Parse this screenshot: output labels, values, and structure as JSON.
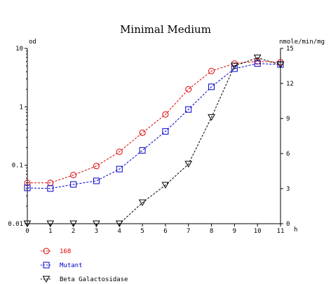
{
  "chart_data": {
    "type": "line",
    "title": "Minimal Medium",
    "x": [
      0,
      1,
      2,
      3,
      4,
      5,
      6,
      7,
      8,
      9,
      10,
      11
    ],
    "xlabel": "h",
    "xlim": [
      0,
      11
    ],
    "left_axis": {
      "label": "od",
      "scale": "log",
      "ylim": [
        0.01,
        10
      ],
      "ticks": [
        "0.01",
        "0.1",
        "1",
        "10"
      ],
      "tick_values": [
        0.01,
        0.1,
        1,
        10
      ]
    },
    "right_axis": {
      "label": "nmole/min/mg",
      "scale": "linear",
      "ylim": [
        0,
        15
      ],
      "ticks": [
        "0",
        "3",
        "6",
        "9",
        "12",
        "15"
      ],
      "tick_values": [
        0,
        3,
        6,
        9,
        12,
        15
      ]
    },
    "x_ticks": [
      "0",
      "1",
      "2",
      "3",
      "4",
      "5",
      "6",
      "7",
      "8",
      "9",
      "10",
      "11"
    ],
    "grid": false,
    "legend_position": "bottom-left",
    "series": [
      {
        "name": "168",
        "axis": "left",
        "marker": "circle",
        "color": "#dd0000",
        "values": [
          0.05,
          0.05,
          0.068,
          0.097,
          0.17,
          0.36,
          0.74,
          2.0,
          4.1,
          5.5,
          6.0,
          5.8
        ]
      },
      {
        "name": "Mutant",
        "axis": "left",
        "marker": "square",
        "color": "#0000cc",
        "values": [
          0.041,
          0.04,
          0.047,
          0.054,
          0.086,
          0.18,
          0.38,
          0.9,
          2.2,
          4.5,
          5.5,
          5.3
        ]
      },
      {
        "name": "Beta Galactosidase",
        "axis": "right",
        "marker": "triangle-down",
        "color": "#000000",
        "values": [
          0,
          0,
          0,
          0,
          0,
          1.8,
          3.3,
          5.1,
          9.1,
          13.5,
          14.2,
          13.6
        ]
      }
    ]
  }
}
